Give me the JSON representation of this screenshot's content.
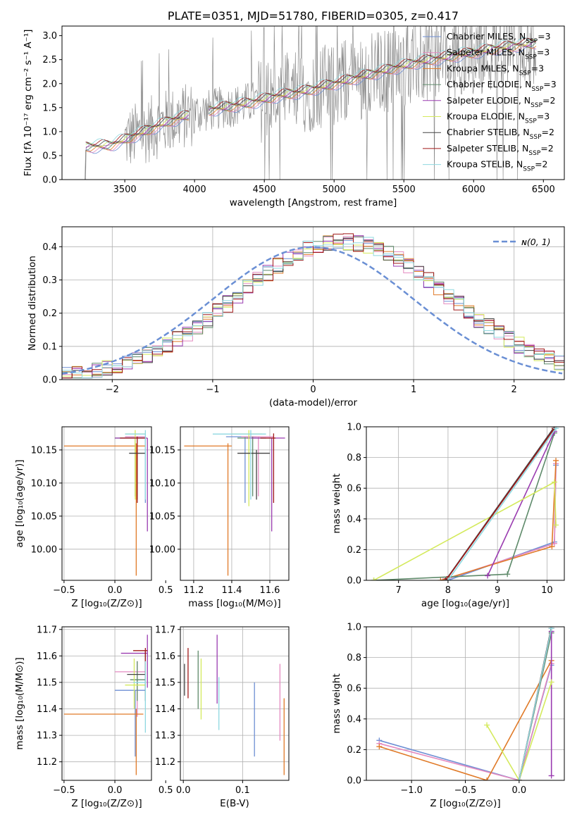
{
  "colors": {
    "chabrier_miles": "#6e8fd4",
    "salpeter_miles": "#e48ac0",
    "kroupa_miles": "#e07a28",
    "chabrier_elodie": "#5e8a6a",
    "salpeter_elodie": "#9a3bb0",
    "kroupa_elodie": "#d4ea5c",
    "chabrier_stelib": "#444444",
    "salpeter_stelib": "#a01818",
    "kroupa_stelib": "#8fd8e0",
    "data": "#808080",
    "normal": "#6a8fd4"
  },
  "chart_data": [
    {
      "id": "spectrum",
      "type": "line",
      "title": "PLATE=0351, MJD=51780, FIBERID=0305, z=0.417",
      "xlabel": "wavelength [Angstrom, rest frame]",
      "ylabel": "Flux [fλ 10⁻¹⁷ erg cm⁻² s⁻¹ A⁻¹]",
      "xlim": [
        3050,
        6650
      ],
      "ylim": [
        0,
        3.2
      ],
      "xticks": [
        "3500",
        "4000",
        "4500",
        "5000",
        "5500",
        "6000",
        "6500"
      ],
      "xtick_values": [
        3500,
        4000,
        4500,
        5000,
        5500,
        6000,
        6500
      ],
      "yticks": [
        "0.0",
        "0.5",
        "1.0",
        "1.5",
        "2.0",
        "2.5",
        "3.0"
      ],
      "ytick_values": [
        0,
        0.5,
        1,
        1.5,
        2,
        2.5,
        3
      ],
      "grid": false,
      "legend_position": "top-right",
      "series": [
        {
          "name": "Chabrier MILES, N",
          "sub": "SSP",
          "suffix": "=3"
        },
        {
          "name": "Salpeter MILES, N",
          "sub": "SSP",
          "suffix": "=3"
        },
        {
          "name": "Kroupa MILES, N",
          "sub": "SSP",
          "suffix": "=3"
        },
        {
          "name": "Chabrier ELODIE, N",
          "sub": "SSP",
          "suffix": "=3"
        },
        {
          "name": "Salpeter ELODIE, N",
          "sub": "SSP",
          "suffix": "=2"
        },
        {
          "name": "Kroupa ELODIE, N",
          "sub": "SSP",
          "suffix": "=3"
        },
        {
          "name": "Chabrier STELIB, N",
          "sub": "SSP",
          "suffix": "=2"
        },
        {
          "name": "Salpeter STELIB, N",
          "sub": "SSP",
          "suffix": "=2"
        },
        {
          "name": "Kroupa STELIB, N",
          "sub": "SSP",
          "suffix": "=2"
        }
      ],
      "continuum": [
        [
          3220,
          0.68
        ],
        [
          3400,
          0.72
        ],
        [
          3600,
          0.95
        ],
        [
          3800,
          1.2
        ],
        [
          4000,
          1.38
        ],
        [
          4200,
          1.5
        ],
        [
          4400,
          1.6
        ],
        [
          4600,
          1.75
        ],
        [
          4800,
          1.85
        ],
        [
          5000,
          2.0
        ],
        [
          5200,
          2.15
        ],
        [
          5400,
          2.3
        ],
        [
          5600,
          2.45
        ],
        [
          5800,
          2.55
        ],
        [
          6000,
          2.65
        ],
        [
          6200,
          2.75
        ],
        [
          6450,
          2.85
        ]
      ]
    },
    {
      "id": "residuals",
      "type": "line",
      "xlabel": "(data-model)/error",
      "ylabel": "Normed distribution",
      "xlim": [
        -2.5,
        2.5
      ],
      "ylim": [
        0,
        0.46
      ],
      "xticks": [
        "−2",
        "−1",
        "0",
        "1",
        "2"
      ],
      "xtick_values": [
        -2,
        -1,
        0,
        1,
        2
      ],
      "yticks": [
        "0.0",
        "0.1",
        "0.2",
        "0.3",
        "0.4"
      ],
      "ytick_values": [
        0,
        0.1,
        0.2,
        0.3,
        0.4
      ],
      "grid": true,
      "legend": "ɴ(0, 1)",
      "legend_position": "top-right",
      "normal_mean": 0,
      "normal_sigma": 1
    },
    {
      "id": "age-vs-z",
      "type": "scatter",
      "xlabel": "Z [log₁₀(Z/Z⊙)]",
      "ylabel": "age  [log₁₀(age/yr)]",
      "xlim": [
        -0.52,
        0.36
      ],
      "ylim": [
        9.953,
        10.185
      ],
      "xticks": [
        "−0.5",
        "0.0",
        "0.5"
      ],
      "xtick_values": [
        -0.5,
        0,
        0.5
      ],
      "yticks": [
        "10.00",
        "10.05",
        "10.10",
        "10.15"
      ],
      "ytick_values": [
        10.0,
        10.05,
        10.1,
        10.15
      ],
      "grid": true,
      "points": [
        {
          "s": "chabrier_miles",
          "x": 0.3,
          "y": 10.17,
          "xlo": 0.1,
          "xhi": 0.3,
          "ylo": 10.07,
          "yhi": 10.17
        },
        {
          "s": "salpeter_miles",
          "x": 0.22,
          "y": 10.17,
          "xlo": 0.1,
          "xhi": 0.3,
          "ylo": 10.08,
          "yhi": 10.17
        },
        {
          "s": "kroupa_miles",
          "x": 0.21,
          "y": 10.156,
          "xlo": -0.5,
          "xhi": 0.3,
          "ylo": 9.96,
          "yhi": 10.16
        },
        {
          "s": "chabrier_elodie",
          "x": 0.2,
          "y": 10.168,
          "xlo": 0.0,
          "xhi": 0.3,
          "ylo": 10.08,
          "yhi": 10.17
        },
        {
          "s": "salpeter_elodie",
          "x": 0.32,
          "y": 10.168,
          "xlo": 0.0,
          "xhi": 0.32,
          "ylo": 10.027,
          "yhi": 10.168
        },
        {
          "s": "kroupa_elodie",
          "x": 0.2,
          "y": 10.174,
          "xlo": 0.1,
          "xhi": 0.3,
          "ylo": 10.075,
          "yhi": 10.18
        },
        {
          "s": "chabrier_stelib",
          "x": 0.22,
          "y": 10.145,
          "xlo": 0.14,
          "xhi": 0.3,
          "ylo": 10.075,
          "yhi": 10.15
        },
        {
          "s": "salpeter_stelib",
          "x": 0.22,
          "y": 10.168,
          "xlo": 0.05,
          "xhi": 0.3,
          "ylo": 10.07,
          "yhi": 10.17
        },
        {
          "s": "kroupa_stelib",
          "x": 0.3,
          "y": 10.174,
          "xlo": 0.1,
          "xhi": 0.3,
          "ylo": 10.075,
          "yhi": 10.18
        }
      ]
    },
    {
      "id": "age-vs-mass",
      "type": "scatter",
      "xlabel": "mass [log₁₀(M/M⊙)]",
      "ylabel": "",
      "xlim": [
        11.13,
        11.7
      ],
      "ylim": [
        9.953,
        10.185
      ],
      "xticks": [
        "11.2",
        "11.4",
        "11.6"
      ],
      "xtick_values": [
        11.2,
        11.4,
        11.6
      ],
      "yticks": [
        "10.00",
        "10.05",
        "10.10",
        "10.15"
      ],
      "ytick_values": [
        10.0,
        10.05,
        10.1,
        10.15
      ],
      "grid": true,
      "points": [
        {
          "s": "chabrier_miles",
          "x": 11.47,
          "y": 10.17,
          "xlo": 11.37,
          "xhi": 11.53,
          "ylo": 10.07,
          "yhi": 10.17
        },
        {
          "s": "salpeter_miles",
          "x": 11.54,
          "y": 10.17,
          "xlo": 11.45,
          "xhi": 11.62,
          "ylo": 10.08,
          "yhi": 10.17
        },
        {
          "s": "kroupa_miles",
          "x": 11.38,
          "y": 10.156,
          "xlo": 11.15,
          "xhi": 11.4,
          "ylo": 9.96,
          "yhi": 10.16
        },
        {
          "s": "chabrier_elodie",
          "x": 11.51,
          "y": 10.168,
          "xlo": 11.43,
          "xhi": 11.58,
          "ylo": 10.08,
          "yhi": 10.17
        },
        {
          "s": "salpeter_elodie",
          "x": 11.61,
          "y": 10.168,
          "xlo": 11.48,
          "xhi": 11.68,
          "ylo": 10.027,
          "yhi": 10.168
        },
        {
          "s": "kroupa_elodie",
          "x": 11.49,
          "y": 10.174,
          "xlo": 11.4,
          "xhi": 11.56,
          "ylo": 10.065,
          "yhi": 10.18
        },
        {
          "s": "chabrier_stelib",
          "x": 11.53,
          "y": 10.145,
          "xlo": 11.43,
          "xhi": 11.6,
          "ylo": 10.075,
          "yhi": 10.15
        },
        {
          "s": "salpeter_stelib",
          "x": 11.62,
          "y": 10.168,
          "xlo": 11.55,
          "xhi": 11.63,
          "ylo": 10.07,
          "yhi": 10.175
        },
        {
          "s": "kroupa_stelib",
          "x": 11.5,
          "y": 10.174,
          "xlo": 11.3,
          "xhi": 11.58,
          "ylo": 10.075,
          "yhi": 10.18
        }
      ]
    },
    {
      "id": "weight-vs-age",
      "type": "line",
      "xlabel": "age  [log₁₀(age/yr)]",
      "ylabel": "mass weight",
      "xlim": [
        6.35,
        10.35
      ],
      "ylim": [
        0,
        1
      ],
      "xticks": [
        "7",
        "8",
        "9",
        "10"
      ],
      "xtick_values": [
        7,
        8,
        9,
        10
      ],
      "yticks": [
        "0.0",
        "0.2",
        "0.4",
        "0.6",
        "0.8",
        "1.0"
      ],
      "ytick_values": [
        0,
        0.2,
        0.4,
        0.6,
        0.8,
        1.0
      ],
      "grid": true,
      "series": [
        {
          "s": "chabrier_miles",
          "points": [
            [
              8.0,
              0.0
            ],
            [
              10.15,
              0.25
            ],
            [
              10.18,
              0.75
            ]
          ]
        },
        {
          "s": "salpeter_miles",
          "points": [
            [
              7.9,
              0.0
            ],
            [
              10.15,
              0.24
            ],
            [
              10.18,
              0.76
            ]
          ]
        },
        {
          "s": "kroupa_miles",
          "points": [
            [
              7.85,
              0.0
            ],
            [
              10.1,
              0.22
            ],
            [
              10.18,
              0.78
            ]
          ]
        },
        {
          "s": "chabrier_elodie",
          "points": [
            [
              6.5,
              0.0
            ],
            [
              9.2,
              0.04
            ],
            [
              10.15,
              0.96
            ]
          ]
        },
        {
          "s": "salpeter_elodie",
          "points": [
            [
              8.8,
              0.03
            ],
            [
              10.15,
              0.97
            ]
          ]
        },
        {
          "s": "kroupa_elodie",
          "points": [
            [
              6.5,
              0.0
            ],
            [
              10.15,
              0.64
            ],
            [
              10.18,
              0.36
            ]
          ]
        },
        {
          "s": "chabrier_stelib",
          "points": [
            [
              7.95,
              0.0
            ],
            [
              10.15,
              1.0
            ]
          ]
        },
        {
          "s": "salpeter_stelib",
          "points": [
            [
              7.98,
              0.01
            ],
            [
              10.15,
              0.99
            ]
          ]
        },
        {
          "s": "kroupa_stelib",
          "points": [
            [
              8.0,
              0.0
            ],
            [
              10.18,
              0.99
            ]
          ]
        }
      ]
    },
    {
      "id": "mass-vs-z",
      "type": "scatter",
      "xlabel": "Z [log₁₀(Z/Z⊙)]",
      "ylabel": "mass [log₁₀(M/M⊙)]",
      "xlim": [
        -0.52,
        0.36
      ],
      "ylim": [
        11.13,
        11.71
      ],
      "xticks": [
        "−0.5",
        "0.0",
        "0.5"
      ],
      "xtick_values": [
        -0.5,
        0,
        0.5
      ],
      "yticks": [
        "11.2",
        "11.3",
        "11.4",
        "11.5",
        "11.6",
        "11.7"
      ],
      "ytick_values": [
        11.2,
        11.3,
        11.4,
        11.5,
        11.6,
        11.7
      ],
      "grid": true,
      "points": [
        {
          "s": "chabrier_miles",
          "x": 0.2,
          "y": 11.47,
          "xlo": 0.0,
          "xhi": 0.3,
          "ylo": 11.22,
          "yhi": 11.47
        },
        {
          "s": "salpeter_miles",
          "x": 0.22,
          "y": 11.54,
          "xlo": 0.0,
          "xhi": 0.3,
          "ylo": 11.37,
          "yhi": 11.58
        },
        {
          "s": "kroupa_miles",
          "x": 0.21,
          "y": 11.38,
          "xlo": -0.5,
          "xhi": 0.28,
          "ylo": 11.15,
          "yhi": 11.4
        },
        {
          "s": "chabrier_elodie",
          "x": 0.22,
          "y": 11.51,
          "xlo": 0.15,
          "xhi": 0.3,
          "ylo": 11.43,
          "yhi": 11.58
        },
        {
          "s": "salpeter_elodie",
          "x": 0.32,
          "y": 11.61,
          "xlo": 0.06,
          "xhi": 0.32,
          "ylo": 11.48,
          "yhi": 11.68
        },
        {
          "s": "kroupa_elodie",
          "x": 0.19,
          "y": 11.49,
          "xlo": 0.1,
          "xhi": 0.3,
          "ylo": 11.4,
          "yhi": 11.59
        },
        {
          "s": "chabrier_stelib",
          "x": 0.3,
          "y": 11.53,
          "xlo": 0.12,
          "xhi": 0.3,
          "ylo": 11.43,
          "yhi": 11.62
        },
        {
          "s": "salpeter_stelib",
          "x": 0.3,
          "y": 11.62,
          "xlo": 0.18,
          "xhi": 0.32,
          "ylo": 11.53,
          "yhi": 11.63
        },
        {
          "s": "kroupa_stelib",
          "x": 0.3,
          "y": 11.5,
          "xlo": 0.18,
          "xhi": 0.3,
          "ylo": 11.31,
          "yhi": 11.58
        }
      ]
    },
    {
      "id": "mass-vs-ebv",
      "type": "scatter",
      "xlabel": "E(B-V)",
      "ylabel": "",
      "xlim": [
        -0.005,
        0.178
      ],
      "ylim": [
        11.13,
        11.71
      ],
      "xticks": [
        "0.0",
        "0.1"
      ],
      "xtick_values": [
        0,
        0.1
      ],
      "yticks": [
        "11.2",
        "11.3",
        "11.4",
        "11.5",
        "11.6",
        "11.7"
      ],
      "ytick_values": [
        11.2,
        11.3,
        11.4,
        11.5,
        11.6,
        11.7
      ],
      "grid": true,
      "points": [
        {
          "s": "chabrier_miles",
          "x": 0.12,
          "ylo": 11.22,
          "yhi": 11.5
        },
        {
          "s": "salpeter_miles",
          "x": 0.163,
          "ylo": 11.28,
          "yhi": 11.57
        },
        {
          "s": "kroupa_miles",
          "x": 0.17,
          "ylo": 11.15,
          "yhi": 11.44
        },
        {
          "s": "chabrier_elodie",
          "x": 0.025,
          "ylo": 11.4,
          "yhi": 11.62
        },
        {
          "s": "salpeter_elodie",
          "x": 0.057,
          "ylo": 11.42,
          "yhi": 11.68
        },
        {
          "s": "kroupa_elodie",
          "x": 0.03,
          "ylo": 11.36,
          "yhi": 11.59
        },
        {
          "s": "chabrier_stelib",
          "x": 0.002,
          "ylo": 11.45,
          "yhi": 11.57
        },
        {
          "s": "salpeter_stelib",
          "x": 0.008,
          "ylo": 11.44,
          "yhi": 11.63
        },
        {
          "s": "kroupa_stelib",
          "x": 0.06,
          "ylo": 11.32,
          "yhi": 11.52
        }
      ]
    },
    {
      "id": "weight-vs-z",
      "type": "line",
      "xlabel": "Z [log₁₀(Z/Z⊙)]",
      "ylabel": "mass weight",
      "xlim": [
        -1.42,
        0.42
      ],
      "ylim": [
        0,
        1
      ],
      "xticks": [
        "−1.0",
        "−0.5",
        "0.0"
      ],
      "xtick_values": [
        -1,
        -0.5,
        0
      ],
      "yticks": [
        "0.0",
        "0.2",
        "0.4",
        "0.6",
        "0.8",
        "1.0"
      ],
      "ytick_values": [
        0,
        0.2,
        0.4,
        0.6,
        0.8,
        1.0
      ],
      "grid": true,
      "series": [
        {
          "s": "chabrier_miles",
          "points": [
            [
              -1.3,
              0.26
            ],
            [
              0.0,
              0.0
            ],
            [
              0.3,
              0.75
            ]
          ]
        },
        {
          "s": "salpeter_miles",
          "points": [
            [
              -1.3,
              0.24
            ],
            [
              0.0,
              0.0
            ],
            [
              0.3,
              0.76
            ]
          ]
        },
        {
          "s": "kroupa_miles",
          "points": [
            [
              -1.3,
              0.22
            ],
            [
              -0.3,
              0.0
            ],
            [
              0.3,
              0.78
            ]
          ]
        },
        {
          "s": "chabrier_elodie",
          "points": [
            [
              0.0,
              0.0
            ],
            [
              0.3,
              0.96
            ]
          ]
        },
        {
          "s": "salpeter_elodie",
          "points": [
            [
              0.3,
              0.03
            ],
            [
              0.3,
              0.97
            ]
          ]
        },
        {
          "s": "kroupa_elodie",
          "points": [
            [
              -0.3,
              0.36
            ],
            [
              0.0,
              0.0
            ],
            [
              0.3,
              0.64
            ]
          ]
        },
        {
          "s": "chabrier_stelib",
          "points": [
            [
              0.0,
              0.0
            ],
            [
              0.3,
              1.0
            ]
          ]
        },
        {
          "s": "salpeter_stelib",
          "points": [
            [
              0.0,
              0.0
            ],
            [
              0.3,
              0.99
            ]
          ]
        },
        {
          "s": "kroupa_stelib",
          "points": [
            [
              0.0,
              0.0
            ],
            [
              0.3,
              0.99
            ]
          ]
        }
      ]
    }
  ]
}
